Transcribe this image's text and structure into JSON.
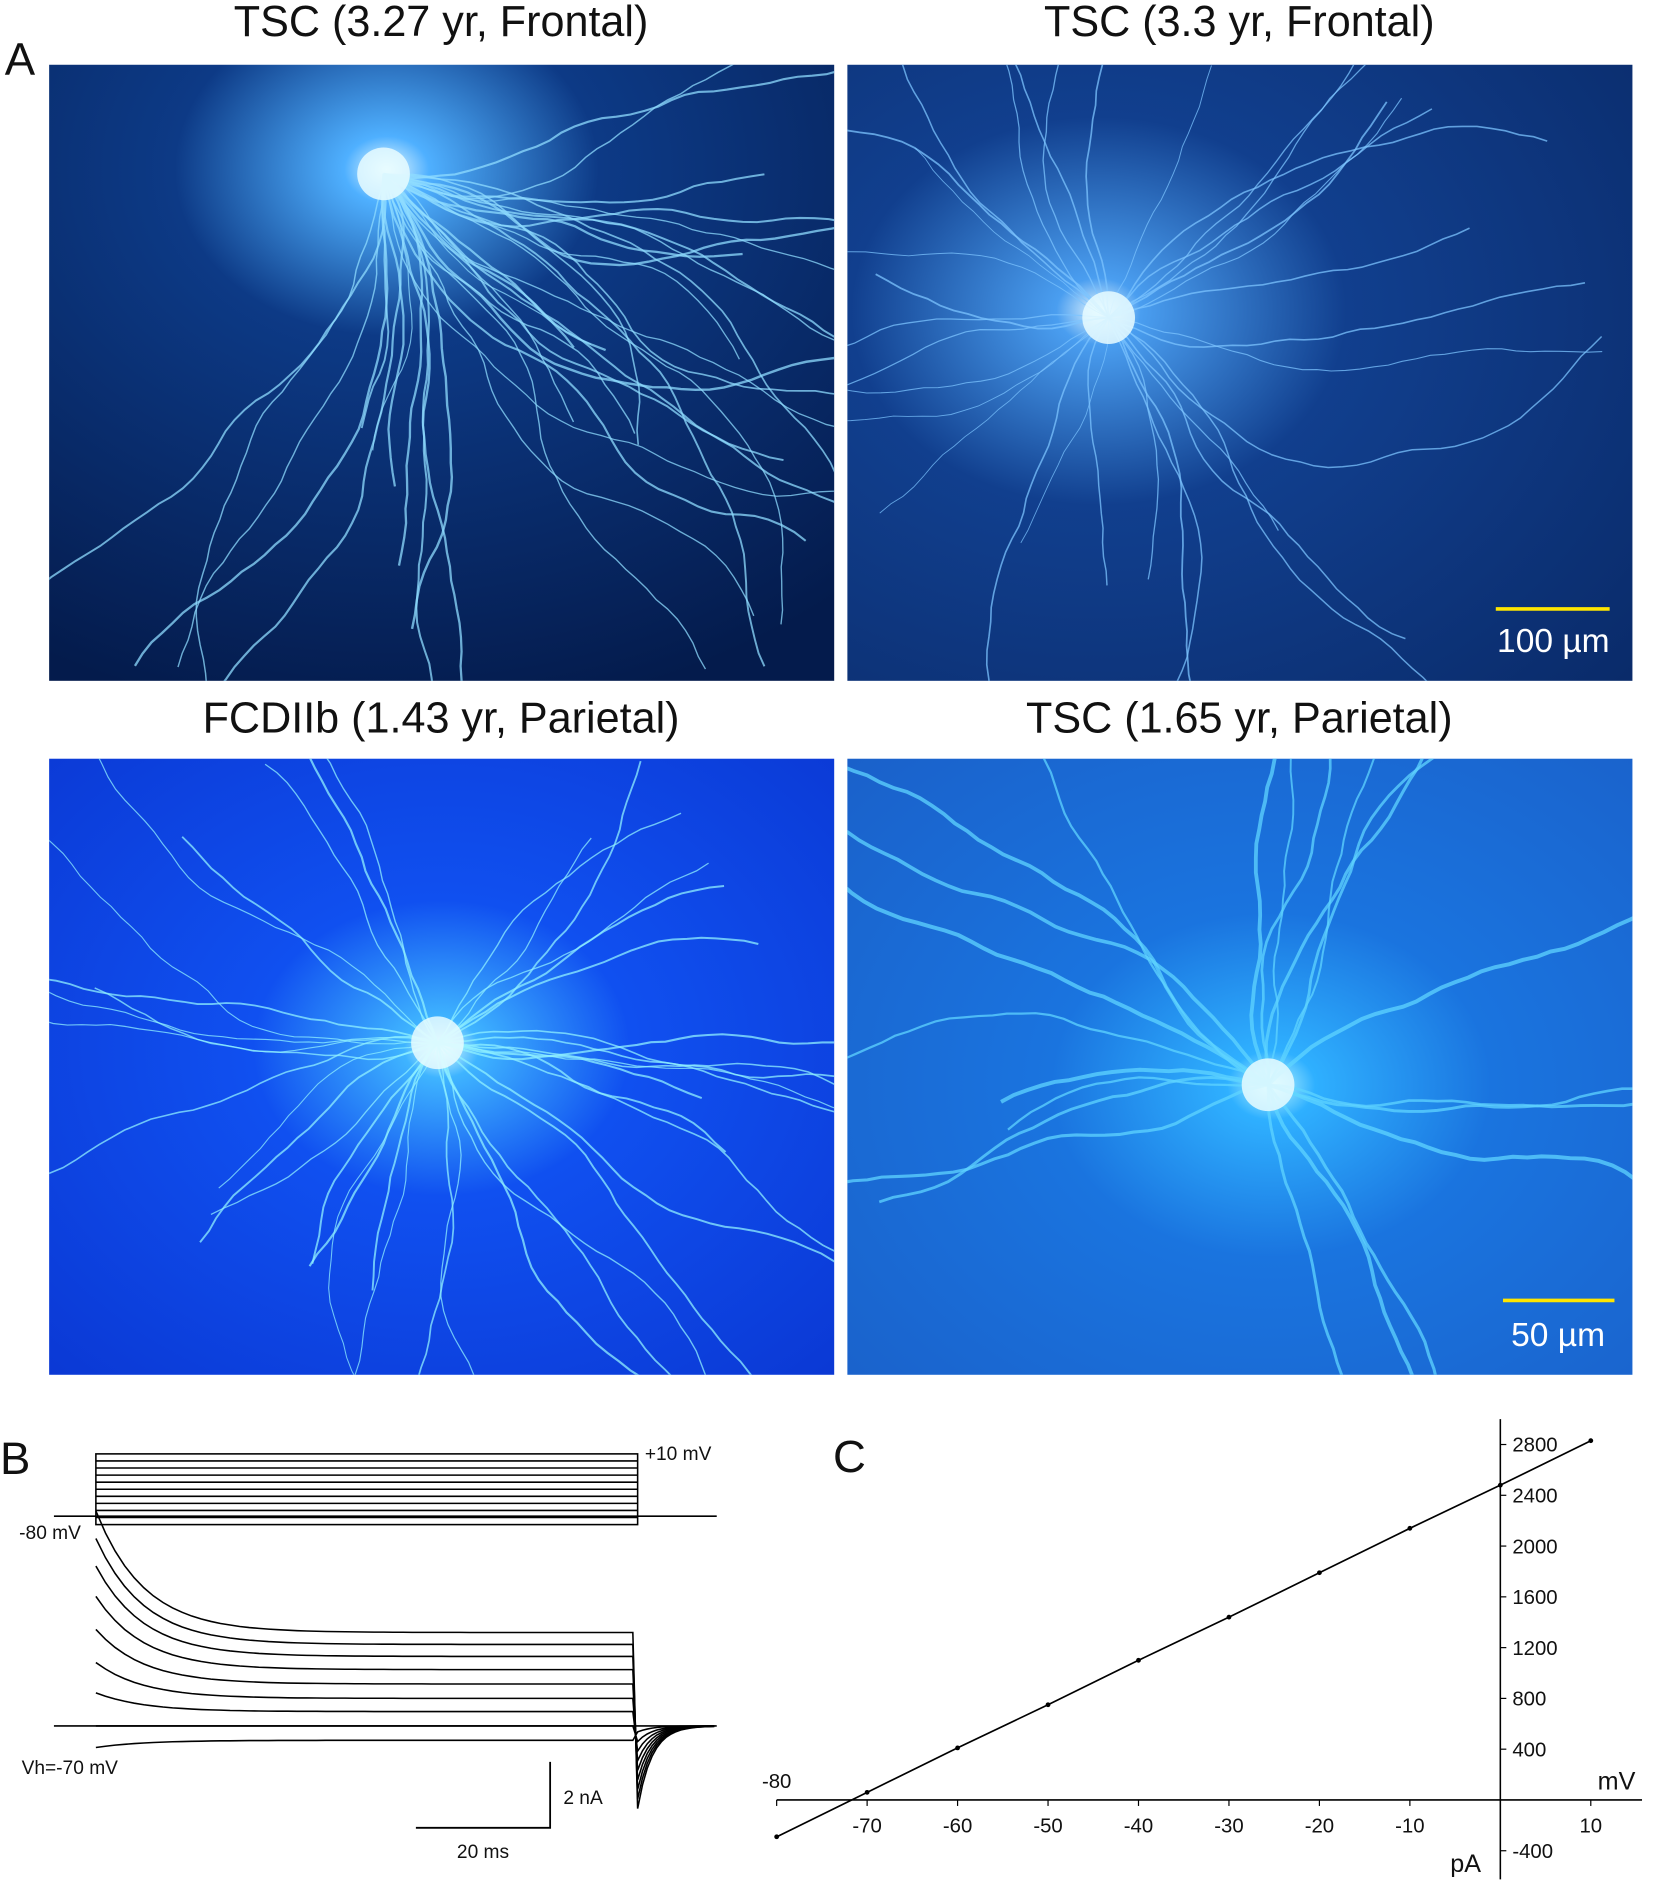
{
  "panels": {
    "A": {
      "label": "A",
      "images": [
        {
          "title": "TSC (3.27 yr, Frontal)"
        },
        {
          "title": "TSC (3.3 yr, Frontal)",
          "scale_bar": "100 µm"
        },
        {
          "title": "FCDIIb (1.43 yr, Parietal)"
        },
        {
          "title": "TSC (1.65 yr, Parietal)",
          "scale_bar": "50 µm"
        }
      ]
    },
    "B": {
      "label": "B",
      "step_top": "+10 mV",
      "step_hold": "-80 mV",
      "holding": "Vh=-70 mV",
      "scale_y": "2 nA",
      "scale_x": "20 ms"
    },
    "C": {
      "label": "C"
    }
  },
  "chart_data": {
    "type": "line",
    "x_label": "mV",
    "y_label": "pA",
    "x": [
      -80,
      -70,
      -60,
      -50,
      -40,
      -30,
      -20,
      -10,
      0,
      10
    ],
    "values": [
      -290,
      60,
      410,
      750,
      1100,
      1440,
      1790,
      2140,
      2480,
      2830
    ],
    "color": "#000000",
    "xlim": [
      -80,
      15
    ],
    "ylim": [
      -550,
      3000
    ],
    "xticks": [
      -80,
      -70,
      -60,
      -50,
      -40,
      -30,
      -20,
      -10,
      10
    ],
    "yticks": [
      -400,
      400,
      800,
      1200,
      1600,
      2000,
      2400,
      2800
    ]
  }
}
